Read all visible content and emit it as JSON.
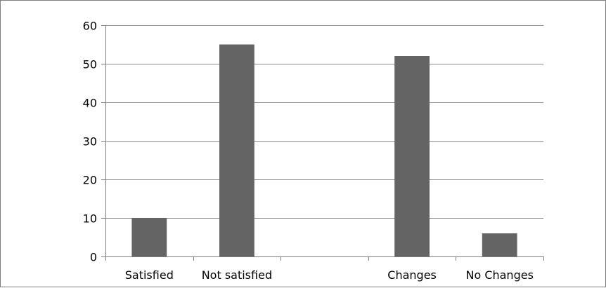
{
  "colors": {
    "bar": "#646464",
    "axis": "#7f7f7f",
    "grid": "#8c8c8c",
    "text": "#000000",
    "background": "#ffffff"
  },
  "chart_data": {
    "type": "bar",
    "title": "",
    "xlabel": "",
    "ylabel": "",
    "categories": [
      "Satisfied",
      "Not satisfied",
      "",
      "Changes",
      "No Changes"
    ],
    "values": [
      10,
      55,
      0,
      52,
      6
    ],
    "ylim": [
      0,
      60
    ],
    "yticks": [
      0,
      10,
      20,
      30,
      40,
      50,
      60
    ],
    "grid": true,
    "legend": "none"
  }
}
